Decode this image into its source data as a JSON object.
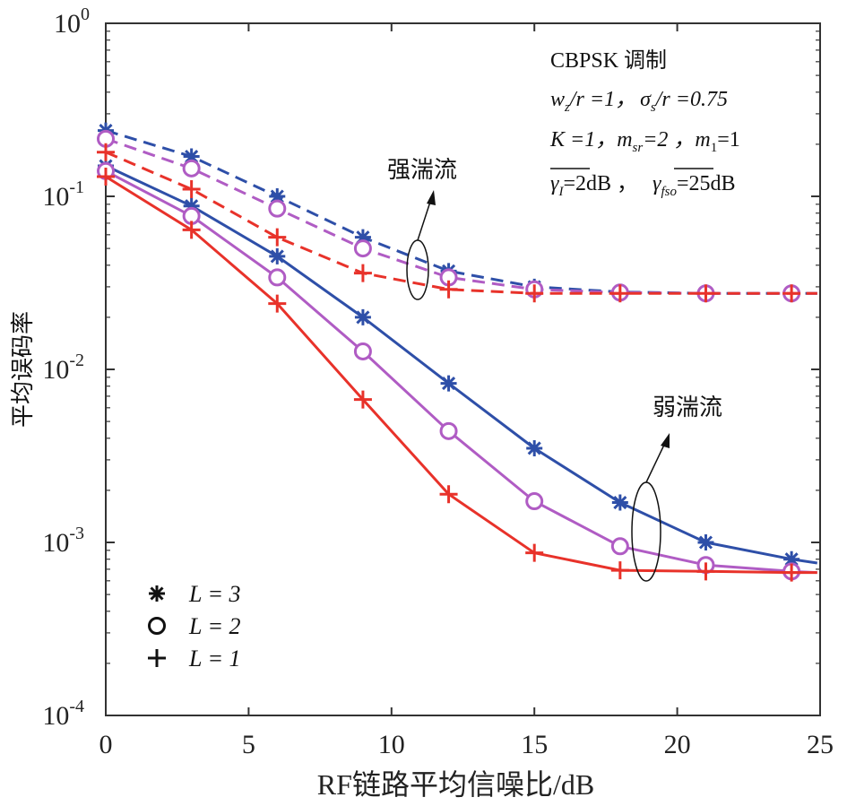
{
  "chart_data": {
    "type": "line",
    "xlabel": "RF链路平均信噪比/dB",
    "ylabel": "平均误码率",
    "x_ticks": [
      "0",
      "5",
      "10",
      "15",
      "20",
      "25"
    ],
    "y_ticks": [
      {
        "base": "10",
        "exp": "-4",
        "value": 0.0001
      },
      {
        "base": "10",
        "exp": "-3",
        "value": 0.001
      },
      {
        "base": "10",
        "exp": "-2",
        "value": 0.01
      },
      {
        "base": "10",
        "exp": "-1",
        "value": 0.1
      },
      {
        "base": "10",
        "exp": "0",
        "value": 1
      }
    ],
    "xlim": [
      0,
      25
    ],
    "ylim": [
      0.0001,
      1
    ],
    "yscale": "log",
    "grid": false,
    "x": [
      0,
      3,
      6,
      9,
      12,
      15,
      18,
      21,
      24
    ],
    "x_end": 24.9,
    "series": [
      {
        "name": "",
        "marker": "star",
        "line": "solid",
        "color": "#2e4fa8",
        "values": [
          0.15,
          0.088,
          0.045,
          0.02,
          0.0083,
          0.0035,
          0.0017,
          0.001,
          0.0008
        ],
        "end_value": 0.00076
      },
      {
        "name": "",
        "marker": "circle",
        "line": "solid",
        "color": "#b05cc4",
        "values": [
          0.14,
          0.077,
          0.034,
          0.0127,
          0.0044,
          0.00173,
          0.00095,
          0.00074,
          0.00068
        ],
        "end_value": 0.00067
      },
      {
        "name": "",
        "marker": "plus",
        "line": "solid",
        "color": "#e8322a",
        "values": [
          0.13,
          0.064,
          0.024,
          0.0067,
          0.0019,
          0.00087,
          0.00069,
          0.00068,
          0.00067
        ],
        "end_value": 0.00067
      },
      {
        "name": "",
        "marker": "star",
        "line": "dashed",
        "color": "#2e4fa8",
        "values": [
          0.24,
          0.17,
          0.1,
          0.058,
          0.037,
          0.03,
          0.028,
          0.0275,
          0.0275
        ],
        "end_value": 0.0275
      },
      {
        "name": "",
        "marker": "circle",
        "line": "dashed",
        "color": "#b05cc4",
        "values": [
          0.215,
          0.145,
          0.085,
          0.05,
          0.034,
          0.029,
          0.0278,
          0.0275,
          0.0275
        ],
        "end_value": 0.0275
      },
      {
        "name": "",
        "marker": "plus",
        "line": "dashed",
        "color": "#e8322a",
        "values": [
          0.18,
          0.11,
          0.058,
          0.036,
          0.029,
          0.0275,
          0.0275,
          0.0275,
          0.0275
        ],
        "end_value": 0.0275
      }
    ],
    "legend": {
      "placement": "bottom-left",
      "items": [
        {
          "marker": "star",
          "label": "L = 3"
        },
        {
          "marker": "circle",
          "label": "L = 2"
        },
        {
          "marker": "plus",
          "label": "L = 1"
        }
      ]
    },
    "annotations": {
      "strong": "强湍流",
      "weak": "弱湍流",
      "modulation": "CBPSK 调制",
      "params1": {
        "a": "w",
        "a_sub": "z",
        "b": "/r =1，",
        "c": "σ",
        "c_sub": "s",
        "d": "/r =0.75"
      },
      "params2": {
        "a": "K =1，m",
        "a_sub": "sr",
        "b": "=2 ，m",
        "b_sub": "1",
        "c": "=1"
      },
      "params3": {
        "a": "γ",
        "a_sub": "I",
        "b": "=2dB ，",
        "c": "γ",
        "c_sub": "fso",
        "d": "=25dB"
      }
    }
  }
}
